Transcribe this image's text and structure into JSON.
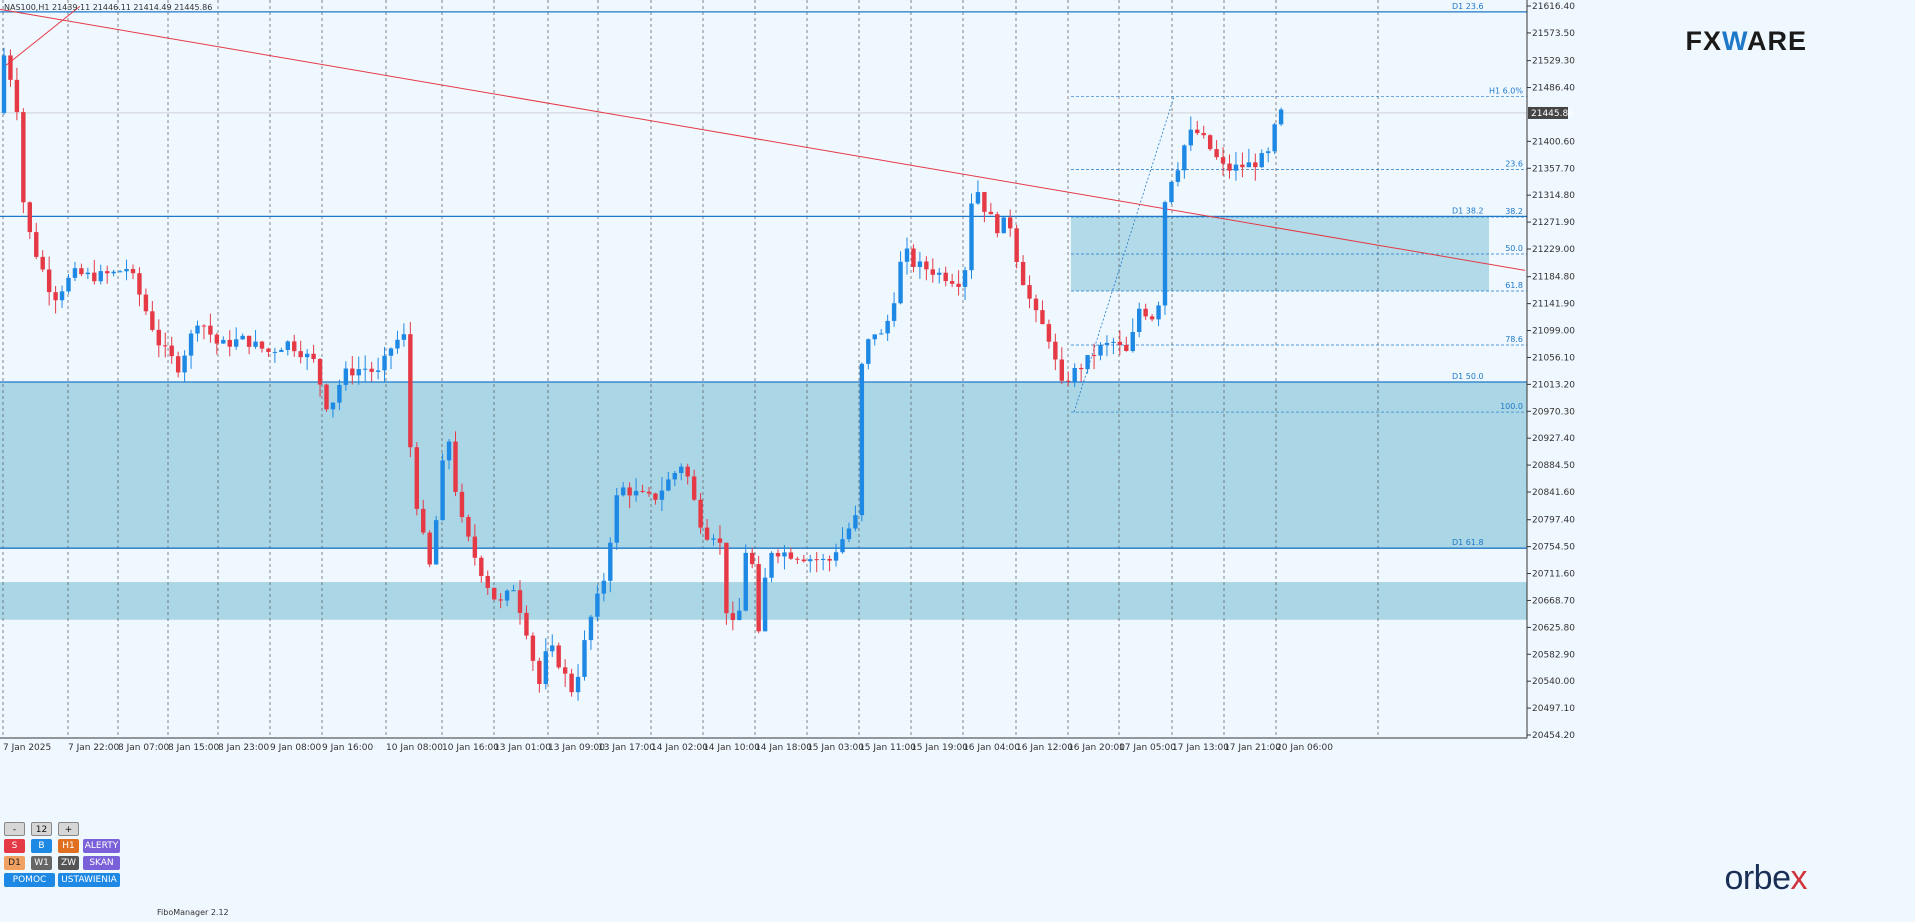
{
  "header": {
    "text": "NAS100,H1  21439.11 21446.11 21414.49 21445.86"
  },
  "logos": {
    "fxware_a": "FX",
    "fxware_b": "W",
    "fxware_c": "ARE",
    "orbex_a": "orbe",
    "orbex_b": "x"
  },
  "footer": {
    "fibo": "FiboManager 2.12"
  },
  "panel": {
    "minus": "-",
    "value": "12",
    "plus": "+",
    "s": "S",
    "b": "B",
    "h1": "H1",
    "alerty": "ALERTY",
    "d1": "D1",
    "w1": "W1",
    "zw": "ZW",
    "skan": "SKAN",
    "pomoc": "POMOC",
    "ustawienia": "USTAWIENIA"
  },
  "colors": {
    "bull": "#1e88e5",
    "bear": "#e53945",
    "zone": "#9ed0e2",
    "level": "#1e78c8",
    "trend": "#e53945",
    "background": "#f0f8ff"
  },
  "chart_data": {
    "type": "candlestick",
    "symbol": "NAS100",
    "timeframe": "H1",
    "ylim": [
      20454.2,
      21616.4
    ],
    "y_ticks": [
      21616.4,
      21573.5,
      21529.3,
      21486.4,
      21400.6,
      21357.7,
      21314.8,
      21271.9,
      21229.0,
      21184.8,
      21141.9,
      21099.0,
      21056.1,
      21013.2,
      20970.3,
      20927.4,
      20884.5,
      20841.6,
      20797.4,
      20754.5,
      20711.6,
      20668.7,
      20625.8,
      20582.9,
      20540.0,
      20497.1,
      20454.2
    ],
    "last_price": "21445.86",
    "x_ticks": [
      "7 Jan 2025",
      "7 Jan 22:00",
      "8 Jan 07:00",
      "8 Jan 15:00",
      "8 Jan 23:00",
      "9 Jan 08:00",
      "9 Jan 16:00",
      "10 Jan 08:00",
      "10 Jan 16:00",
      "13 Jan 01:00",
      "13 Jan 09:00",
      "13 Jan 17:00",
      "14 Jan 02:00",
      "14 Jan 10:00",
      "14 Jan 18:00",
      "15 Jan 03:00",
      "15 Jan 11:00",
      "15 Jan 19:00",
      "16 Jan 04:00",
      "16 Jan 12:00",
      "16 Jan 20:00",
      "17 Jan 05:00",
      "17 Jan 13:00",
      "17 Jan 21:00",
      "20 Jan 06:00"
    ],
    "levels": [
      {
        "label": "D1 23.6",
        "price": 21607
      },
      {
        "label": "D1 38.2",
        "price": 21281
      },
      {
        "label": "D1 50.0",
        "price": 21017
      },
      {
        "label": "D1 61.8",
        "price": 20752
      }
    ],
    "fib_h1": [
      {
        "label": "H1 6.0%",
        "price": 21472
      },
      {
        "label": "23.6",
        "price": 21356
      },
      {
        "label": "38.2",
        "price": 21280
      },
      {
        "label": "50.0",
        "price": 21221
      },
      {
        "label": "61.8",
        "price": 21162
      },
      {
        "label": "78.6",
        "price": 21076
      },
      {
        "label": "100.0",
        "price": 20969
      }
    ],
    "zones": [
      {
        "from": 21017,
        "to": 20752
      },
      {
        "from": 20698,
        "to": 20638
      },
      {
        "from": 21281,
        "to": 21162
      }
    ],
    "trendline": {
      "from": [
        0,
        21611
      ],
      "to": [
        1525,
        21195
      ]
    },
    "support_trend": {
      "from": [
        3,
        21518
      ],
      "to": [
        80,
        21616
      ]
    },
    "keypoints": [
      [
        5,
        21480
      ],
      [
        10,
        21540
      ],
      [
        16,
        21510
      ],
      [
        24,
        21450
      ],
      [
        30,
        21300
      ],
      [
        38,
        21240
      ],
      [
        48,
        21200
      ],
      [
        60,
        21150
      ],
      [
        80,
        21190
      ],
      [
        100,
        21185
      ],
      [
        120,
        21190
      ],
      [
        135,
        21200
      ],
      [
        150,
        21140
      ],
      [
        165,
        21080
      ],
      [
        185,
        21040
      ],
      [
        205,
        21120
      ],
      [
        225,
        21075
      ],
      [
        250,
        21085
      ],
      [
        275,
        21065
      ],
      [
        295,
        21080
      ],
      [
        320,
        21050
      ],
      [
        335,
        20970
      ],
      [
        350,
        21030
      ],
      [
        370,
        21040
      ],
      [
        385,
        21030
      ],
      [
        400,
        21080
      ],
      [
        412,
        21090
      ],
      [
        418,
        20870
      ],
      [
        428,
        20780
      ],
      [
        438,
        20710
      ],
      [
        446,
        20860
      ],
      [
        455,
        20930
      ],
      [
        465,
        20810
      ],
      [
        478,
        20750
      ],
      [
        492,
        20700
      ],
      [
        505,
        20660
      ],
      [
        520,
        20690
      ],
      [
        535,
        20610
      ],
      [
        545,
        20530
      ],
      [
        555,
        20600
      ],
      [
        565,
        20570
      ],
      [
        580,
        20520
      ],
      [
        595,
        20630
      ],
      [
        610,
        20700
      ],
      [
        625,
        20850
      ],
      [
        640,
        20840
      ],
      [
        660,
        20830
      ],
      [
        675,
        20860
      ],
      [
        690,
        20890
      ],
      [
        705,
        20800
      ],
      [
        715,
        20770
      ],
      [
        725,
        20780
      ],
      [
        735,
        20620
      ],
      [
        745,
        20640
      ],
      [
        755,
        20790
      ],
      [
        765,
        20610
      ],
      [
        775,
        20750
      ],
      [
        790,
        20745
      ],
      [
        805,
        20740
      ],
      [
        820,
        20735
      ],
      [
        835,
        20730
      ],
      [
        850,
        20770
      ],
      [
        862,
        20800
      ],
      [
        868,
        21040
      ],
      [
        878,
        21100
      ],
      [
        888,
        21090
      ],
      [
        898,
        21130
      ],
      [
        910,
        21230
      ],
      [
        920,
        21205
      ],
      [
        930,
        21200
      ],
      [
        945,
        21190
      ],
      [
        960,
        21180
      ],
      [
        970,
        21175
      ],
      [
        980,
        21340
      ],
      [
        992,
        21290
      ],
      [
        1005,
        21260
      ],
      [
        1015,
        21280
      ],
      [
        1025,
        21200
      ],
      [
        1040,
        21130
      ],
      [
        1055,
        21090
      ],
      [
        1068,
        21010
      ],
      [
        1078,
        21030
      ],
      [
        1090,
        21045
      ],
      [
        1105,
        21070
      ],
      [
        1120,
        21080
      ],
      [
        1135,
        21060
      ],
      [
        1145,
        21135
      ],
      [
        1160,
        21120
      ],
      [
        1168,
        21160
      ],
      [
        1172,
        21330
      ],
      [
        1182,
        21350
      ],
      [
        1192,
        21400
      ],
      [
        1200,
        21420
      ],
      [
        1212,
        21400
      ],
      [
        1222,
        21375
      ],
      [
        1232,
        21355
      ],
      [
        1245,
        21360
      ],
      [
        1260,
        21365
      ],
      [
        1275,
        21380
      ],
      [
        1285,
        21446
      ]
    ]
  }
}
